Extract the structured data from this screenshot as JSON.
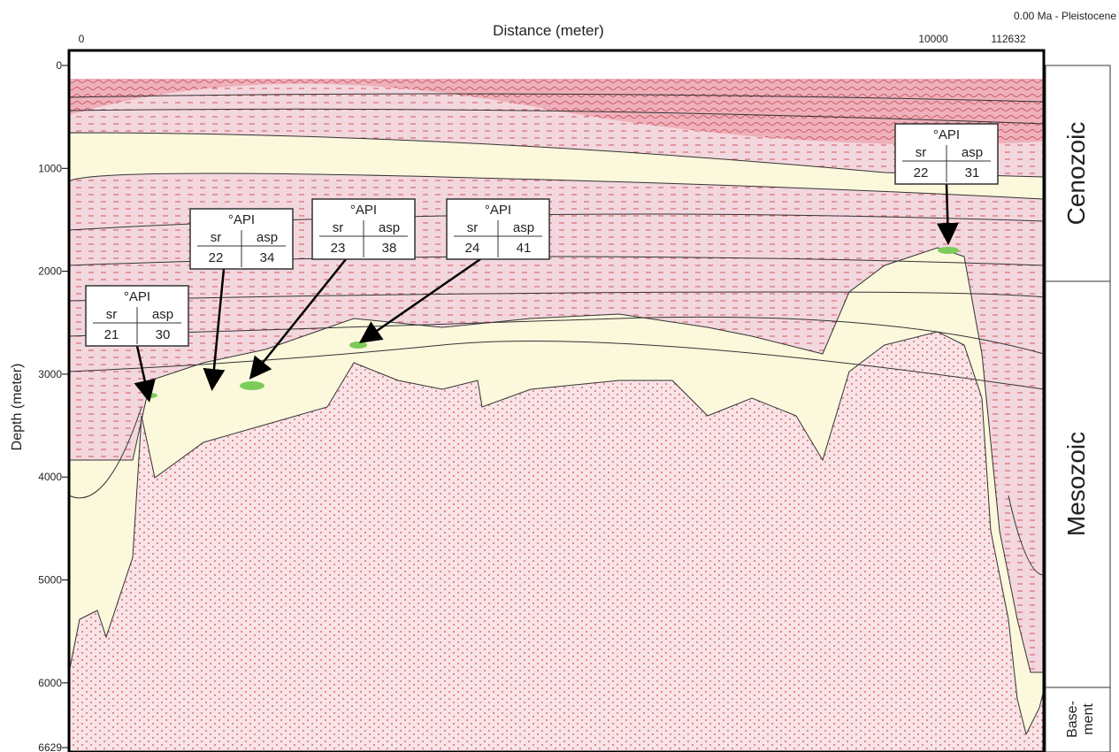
{
  "header": {
    "x_axis_title": "Distance (meter)",
    "y_axis_title": "Depth (meter)",
    "age_label": "0.00 Ma - Pleistocene",
    "x_ticks": [
      "0",
      "10000",
      "112632"
    ],
    "y_ticks": [
      0,
      1000,
      2000,
      3000,
      4000,
      5000,
      6000,
      6629
    ]
  },
  "eras": [
    {
      "lines": [
        "Cenozoic"
      ]
    },
    {
      "lines": [
        "Mesozoic"
      ]
    },
    {
      "lines": [
        "Base-",
        "ment"
      ]
    }
  ],
  "boxes": [
    {
      "title": "°API",
      "col1": "sr",
      "col2": "asp",
      "sr": 21,
      "asp": 30
    },
    {
      "title": "°API",
      "col1": "sr",
      "col2": "asp",
      "sr": 22,
      "asp": 34
    },
    {
      "title": "°API",
      "col1": "sr",
      "col2": "asp",
      "sr": 23,
      "asp": 38
    },
    {
      "title": "°API",
      "col1": "sr",
      "col2": "asp",
      "sr": 24,
      "asp": 41
    },
    {
      "title": "°API",
      "col1": "sr",
      "col2": "asp",
      "sr": 22,
      "asp": 31
    }
  ]
}
